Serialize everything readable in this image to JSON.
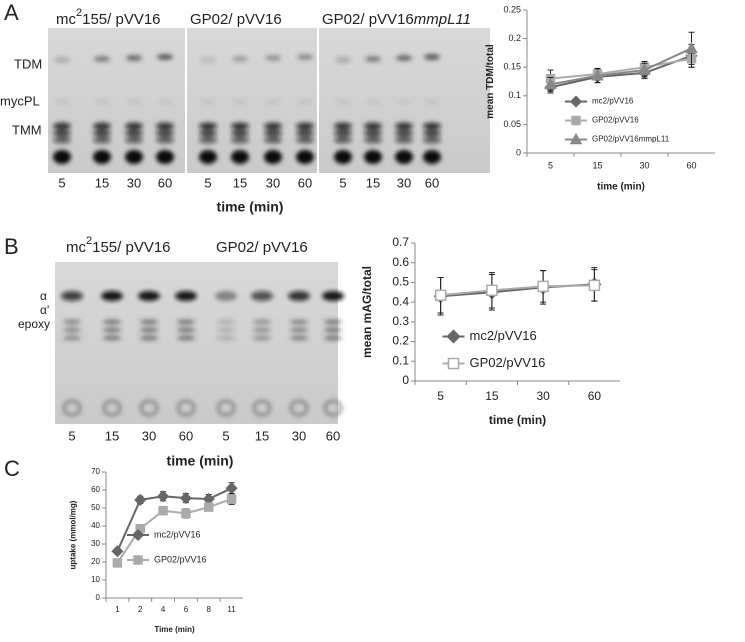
{
  "panel_labels": [
    "A",
    "B",
    "C"
  ],
  "gels": [
    {
      "groups": [
        {
          "parts": [
            "mc",
            "2",
            "155/ pVV16"
          ]
        },
        {
          "parts": [
            "GP02/ pVV16"
          ]
        },
        {
          "parts": [
            "GP02/ pVV16",
            "mmpL11"
          ]
        }
      ],
      "band_labels": [
        "TDM",
        "mycPL",
        "TMM"
      ],
      "lane_labels": [
        "5",
        "15",
        "30",
        "60",
        "5",
        "15",
        "30",
        "60",
        "5",
        "15",
        "30",
        "60"
      ],
      "axis_label": "time (min)"
    },
    {
      "groups": [
        {
          "parts": [
            "mc",
            "2",
            "155/ pVV16"
          ]
        },
        {
          "parts": [
            "GP02/ pVV16"
          ]
        }
      ],
      "band_labels": [
        "α",
        "α'",
        "epoxy"
      ],
      "lane_labels": [
        "5",
        "15",
        "30",
        "60",
        "5",
        "15",
        "30",
        "60"
      ],
      "axis_label": "time (min)"
    }
  ],
  "chart_data": [
    {
      "type": "line",
      "x_label": "time (min)",
      "y_label": "mean TDM/total",
      "categories": [
        "5",
        "15",
        "30",
        "60"
      ],
      "ylim": [
        0,
        0.25
      ],
      "yticks": [
        0,
        0.05,
        0.1,
        0.15,
        0.2,
        0.25
      ],
      "legend": "lower right",
      "series": [
        {
          "name": "mc2/pVV16",
          "color": "#666666",
          "marker": "diamond",
          "filled": true,
          "values": [
            0.115,
            0.133,
            0.14,
            0.17
          ],
          "errors": [
            0.01,
            0.01,
            0.01,
            0.02
          ]
        },
        {
          "name": "GP02/pVV16",
          "color": "#aaaaaa",
          "marker": "square",
          "filled": true,
          "values": [
            0.13,
            0.138,
            0.15,
            0.165
          ],
          "errors": [
            0.015,
            0.01,
            0.01,
            0.015
          ]
        },
        {
          "name": "GP02/pVV16mmpL11",
          "color": "#888888",
          "marker": "triangle",
          "filled": true,
          "values": [
            0.12,
            0.135,
            0.145,
            0.183
          ],
          "errors": [
            0.012,
            0.012,
            0.012,
            0.028
          ]
        }
      ]
    },
    {
      "type": "line",
      "x_label": "time (min)",
      "y_label": "mean mAG/total",
      "categories": [
        "5",
        "15",
        "30",
        "60"
      ],
      "ylim": [
        0,
        0.7
      ],
      "yticks": [
        0,
        0.1,
        0.2,
        0.3,
        0.4,
        0.5,
        0.6,
        0.7
      ],
      "legend": "lower center",
      "series": [
        {
          "name": "mc2/pVV16",
          "color": "#666666",
          "marker": "diamond",
          "filled": true,
          "values": [
            0.43,
            0.45,
            0.475,
            0.49
          ],
          "errors": [
            0.095,
            0.09,
            0.085,
            0.085
          ]
        },
        {
          "name": "GP02/pVV16",
          "color": "#aaaaaa",
          "marker": "square",
          "filled": false,
          "values": [
            0.435,
            0.46,
            0.48,
            0.485
          ],
          "errors": [
            0.09,
            0.09,
            0.08,
            0.08
          ]
        }
      ]
    },
    {
      "type": "line",
      "x_label": "Time (min)",
      "y_label": "uptake (mmol/mg)",
      "categories": [
        "1",
        "2",
        "4",
        "6",
        "8",
        "11"
      ],
      "ylim": [
        0,
        70
      ],
      "yticks": [
        0,
        10,
        20,
        30,
        40,
        50,
        60,
        70
      ],
      "legend": "center",
      "series": [
        {
          "name": "mc2/pVV16",
          "color": "#666666",
          "marker": "diamond",
          "filled": true,
          "values": [
            26,
            54.5,
            56.5,
            55.5,
            55,
            61
          ],
          "errors": [
            1,
            2,
            2.5,
            2.5,
            2.5,
            3
          ]
        },
        {
          "name": "GP02/pVV16",
          "color": "#aaaaaa",
          "marker": "square",
          "filled": true,
          "values": [
            19.5,
            38.5,
            48.5,
            47,
            50.5,
            55
          ],
          "errors": [
            1,
            1.5,
            2,
            2.5,
            2,
            3
          ]
        }
      ]
    }
  ]
}
